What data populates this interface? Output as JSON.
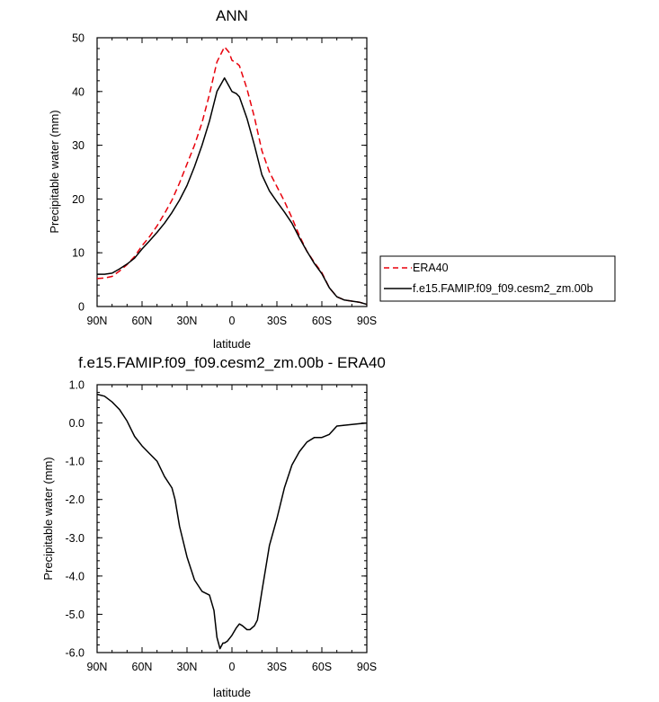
{
  "chart_data": [
    {
      "type": "line",
      "title": "ANN",
      "xlabel": "latitude",
      "ylabel": "Precipitable water (mm)",
      "x_ticks": [
        "90N",
        "60N",
        "30N",
        "0",
        "30S",
        "60S",
        "90S"
      ],
      "x_tick_values": [
        90,
        60,
        30,
        0,
        -30,
        -60,
        -90
      ],
      "y_ticks": [
        "0",
        "10",
        "20",
        "30",
        "40",
        "50"
      ],
      "y_tick_values": [
        0,
        10,
        20,
        30,
        40,
        50
      ],
      "xlim": [
        90,
        -90
      ],
      "ylim": [
        0,
        50
      ],
      "grid": false,
      "legend_position": "right",
      "series": [
        {
          "name": "ERA40",
          "color": "#e8000b",
          "dash": "dashed",
          "x": [
            90,
            85,
            80,
            75,
            70,
            65,
            60,
            55,
            50,
            45,
            40,
            35,
            30,
            25,
            20,
            15,
            10,
            5,
            2,
            0,
            -3,
            -5,
            -10,
            -15,
            -20,
            -25,
            -30,
            -35,
            -40,
            -45,
            -50,
            -55,
            -60,
            -65,
            -70,
            -75,
            -80,
            -85,
            -90
          ],
          "y": [
            5.2,
            5.3,
            5.6,
            6.6,
            7.8,
            9.3,
            11.3,
            13.0,
            15.0,
            17.3,
            19.8,
            23.0,
            26.5,
            30.0,
            34.2,
            39.5,
            45.5,
            48.3,
            47.3,
            45.8,
            45.3,
            44.8,
            40.5,
            35.2,
            29.0,
            25.0,
            22.3,
            19.6,
            16.5,
            13.2,
            10.3,
            8.2,
            6.3,
            3.5,
            1.8,
            1.2,
            1.0,
            0.8,
            0.4
          ]
        },
        {
          "name": "f.e15.FAMIP.f09_f09.cesm2_zm.00b",
          "color": "#000000",
          "dash": "solid",
          "x": [
            90,
            85,
            80,
            75,
            70,
            65,
            60,
            55,
            50,
            45,
            40,
            35,
            30,
            25,
            20,
            15,
            10,
            5,
            2,
            0,
            -3,
            -5,
            -10,
            -15,
            -20,
            -25,
            -30,
            -35,
            -40,
            -45,
            -50,
            -55,
            -60,
            -65,
            -70,
            -75,
            -80,
            -85,
            -90
          ],
          "y": [
            6.0,
            6.0,
            6.2,
            7.0,
            7.9,
            9.0,
            10.7,
            12.2,
            13.8,
            15.5,
            17.5,
            19.8,
            22.5,
            26.0,
            30.0,
            34.5,
            40.0,
            42.5,
            41.0,
            40.0,
            39.6,
            39.0,
            35.0,
            30.0,
            24.5,
            21.5,
            19.5,
            17.6,
            15.5,
            12.8,
            10.3,
            8.0,
            6.1,
            3.5,
            1.8,
            1.2,
            1.0,
            0.8,
            0.4
          ]
        }
      ]
    },
    {
      "type": "line",
      "title": "f.e15.FAMIP.f09_f09.cesm2_zm.00b - ERA40",
      "xlabel": "latitude",
      "ylabel": "Precipitable water (mm)",
      "x_ticks": [
        "90N",
        "60N",
        "30N",
        "0",
        "30S",
        "60S",
        "90S"
      ],
      "x_tick_values": [
        90,
        60,
        30,
        0,
        -30,
        -60,
        -90
      ],
      "y_ticks": [
        "1.0",
        "0.0",
        "-1.0",
        "-2.0",
        "-3.0",
        "-4.0",
        "-5.0",
        "-6.0"
      ],
      "y_tick_values": [
        1,
        0,
        -1,
        -2,
        -3,
        -4,
        -5,
        -6
      ],
      "xlim": [
        90,
        -90
      ],
      "ylim": [
        -6,
        1
      ],
      "grid": false,
      "series": [
        {
          "color": "#000000",
          "dash": "solid",
          "x": [
            90,
            85,
            80,
            75,
            70,
            65,
            60,
            55,
            50,
            45,
            40,
            38,
            35,
            30,
            25,
            20,
            15,
            12,
            10,
            8,
            6,
            5,
            3,
            0,
            -3,
            -5,
            -7,
            -10,
            -12,
            -15,
            -17,
            -20,
            -25,
            -30,
            -35,
            -40,
            -45,
            -50,
            -55,
            -60,
            -65,
            -70,
            -75,
            -80,
            -85,
            -90
          ],
          "y": [
            0.75,
            0.7,
            0.55,
            0.35,
            0.05,
            -0.35,
            -0.6,
            -0.8,
            -1.0,
            -1.4,
            -1.7,
            -2.0,
            -2.7,
            -3.5,
            -4.1,
            -4.4,
            -4.5,
            -4.9,
            -5.6,
            -5.9,
            -5.75,
            -5.75,
            -5.7,
            -5.55,
            -5.35,
            -5.25,
            -5.3,
            -5.4,
            -5.4,
            -5.3,
            -5.15,
            -4.4,
            -3.2,
            -2.5,
            -1.7,
            -1.1,
            -0.75,
            -0.5,
            -0.38,
            -0.38,
            -0.3,
            -0.08,
            -0.06,
            -0.04,
            -0.02,
            0.0
          ]
        }
      ]
    }
  ]
}
